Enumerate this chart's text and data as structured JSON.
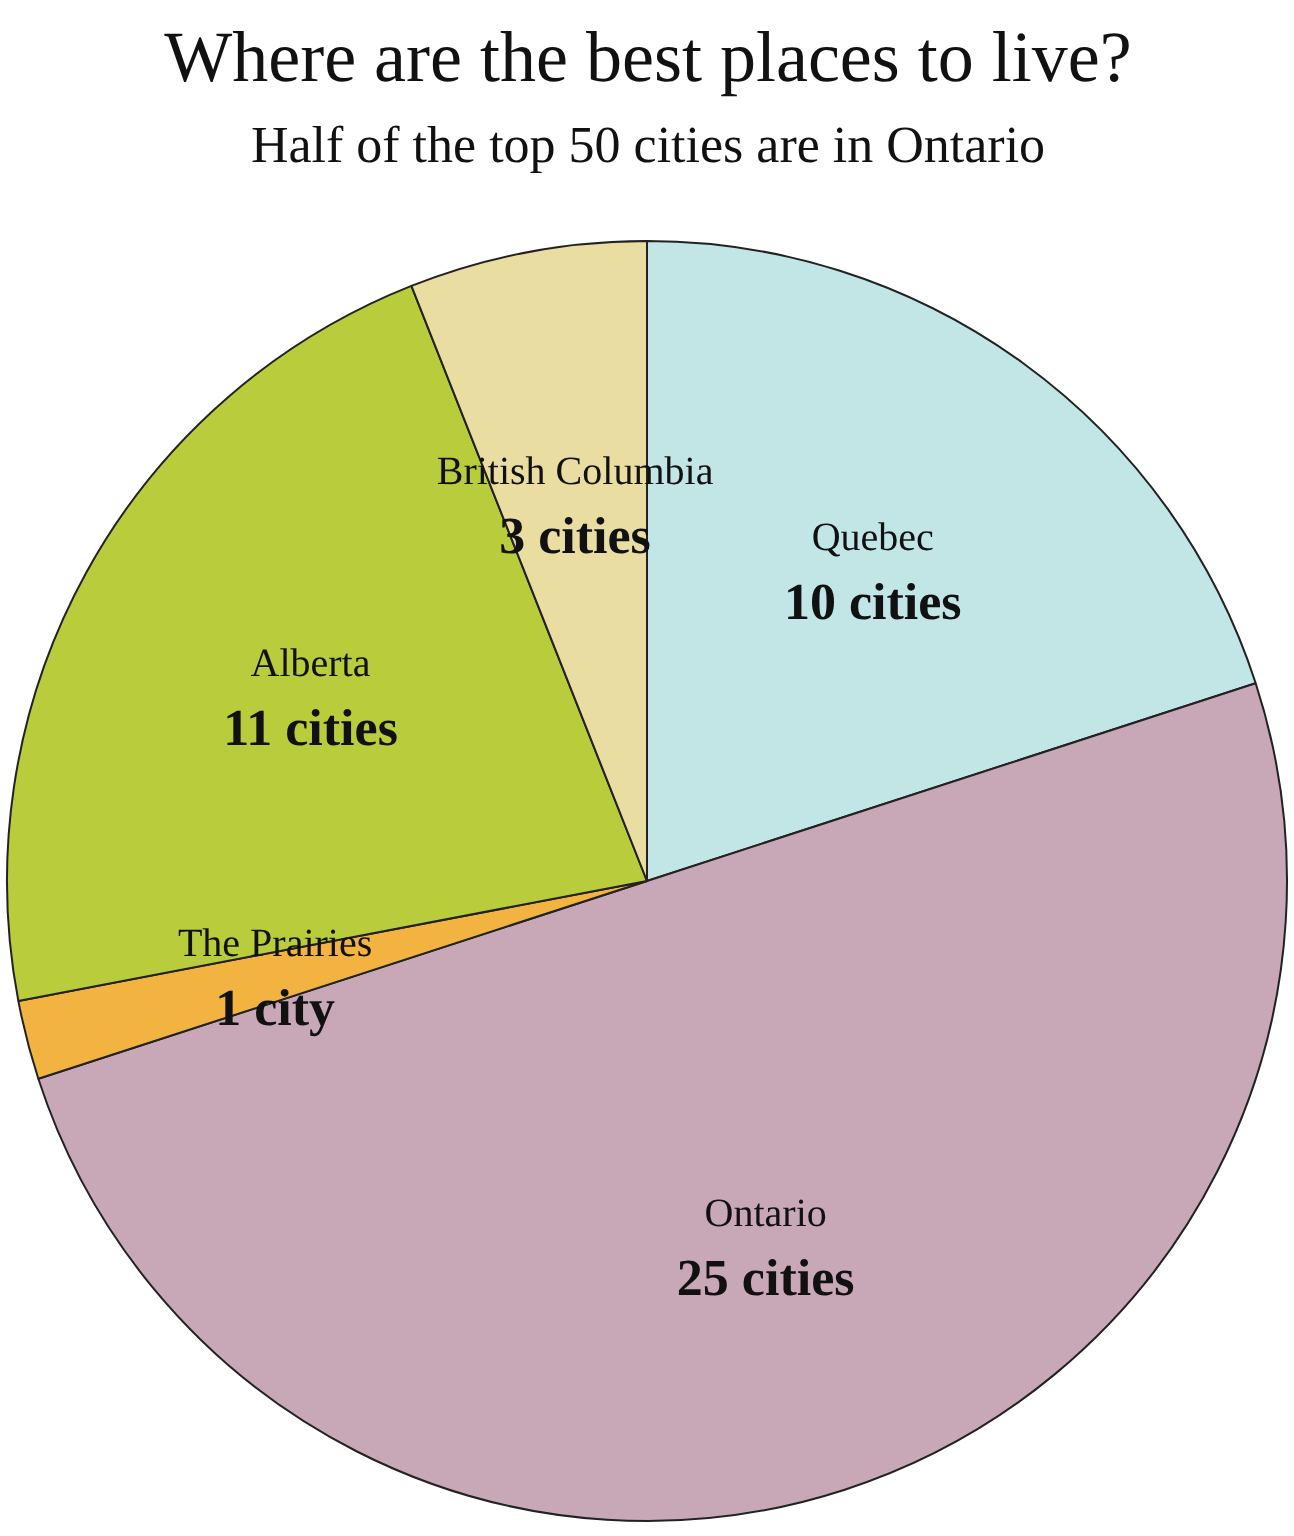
{
  "chart_data": {
    "type": "pie",
    "title": "Where are the best places to live?",
    "subtitle": "Half of the top 50 cities are in Ontario",
    "categories": [
      "Quebec",
      "Ontario",
      "The Prairies",
      "Alberta",
      "British Columbia"
    ],
    "values": [
      10,
      25,
      1,
      11,
      3
    ],
    "colors": [
      "#c2e5e6",
      "#c8a7b7",
      "#f2b340",
      "#b9cd3c",
      "#e9dda2"
    ],
    "value_labels": [
      "10 cities",
      "25 cities",
      "1 city",
      "11 cities",
      "3 cities"
    ]
  }
}
